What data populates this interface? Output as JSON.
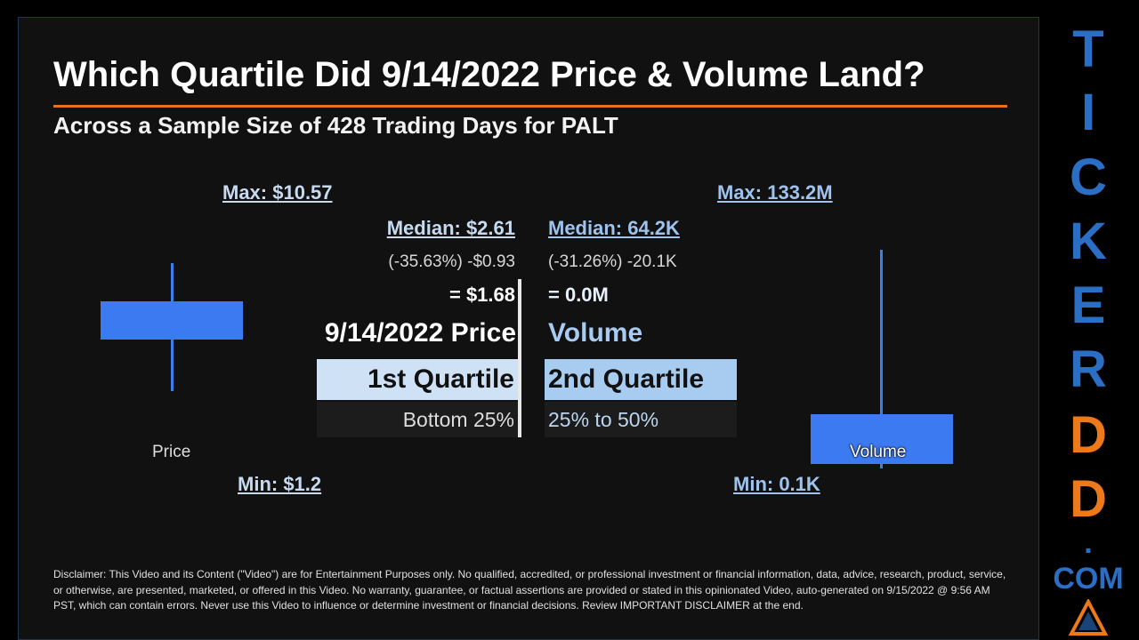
{
  "header": {
    "title": "Which Quartile Did 9/14/2022 Price & Volume Land?",
    "subtitle": "Across a Sample Size of 428 Trading Days for PALT"
  },
  "price": {
    "max_label": "Max: $10.57",
    "min_label": "Min: $1.2",
    "median_label": "Median: $2.61",
    "change": "(-35.63%) -$0.93",
    "result": "= $1.68",
    "heading": "9/14/2022 Price",
    "quartile": "1st Quartile",
    "range": "Bottom 25%",
    "caption": "Price",
    "color": "#3b7af0"
  },
  "volume": {
    "max_label": "Max: 133.2M",
    "min_label": "Min: 0.1K",
    "median_label": "Median: 64.2K",
    "change": "(-31.26%) -20.1K",
    "result": "= 0.0M",
    "heading": "Volume",
    "quartile": "2nd Quartile",
    "range": "25% to 50%",
    "caption": "Volume",
    "color": "#3b7af0"
  },
  "disclaimer": "Disclaimer: This Video and its Content (\"Video\") are for Entertainment Purposes only. No qualified, accredited, or professional investment or financial information, data, advice, research, product, service, or otherwise, are presented, marketed, or offered in this Video. No warranty, guarantee, or factual assertions are provided or stated in this opinionated Video, auto-generated on 9/15/2022 @ 9:56 AM PST, which can contain errors. Never use this Video to influence or determine investment or financial decisions. Review IMPORTANT DISCLAIMER at the end.",
  "brand": {
    "letters": [
      "T",
      "I",
      "C",
      "K",
      "E",
      "R",
      "D",
      "D"
    ],
    "dot": ".",
    "com": "COM",
    "colors": {
      "blue": "#2b6fc4",
      "orange": "#ec7a1a"
    }
  }
}
